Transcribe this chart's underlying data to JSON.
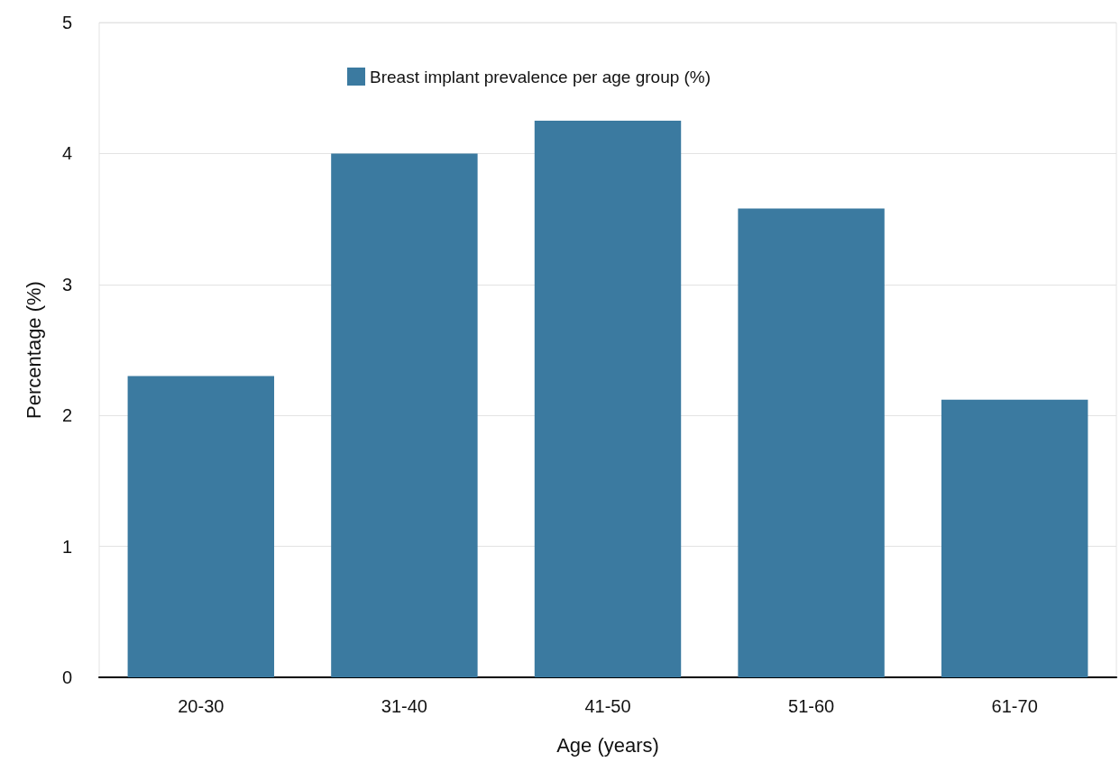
{
  "chart_data": {
    "type": "bar",
    "xlabel": "Age (years)",
    "ylabel": "Percentage (%)",
    "categories": [
      "20-30",
      "31-40",
      "41-50",
      "51-60",
      "61-70"
    ],
    "series": [
      {
        "name": "Breast implant prevalence per age group (%)",
        "color": "#3b7aa0",
        "values": [
          2.3,
          4.0,
          4.25,
          3.58,
          2.12
        ]
      }
    ],
    "ylim": [
      0,
      5
    ],
    "yticks": [
      0,
      1,
      2,
      3,
      4,
      5
    ],
    "grid": "y",
    "legend": "top"
  }
}
